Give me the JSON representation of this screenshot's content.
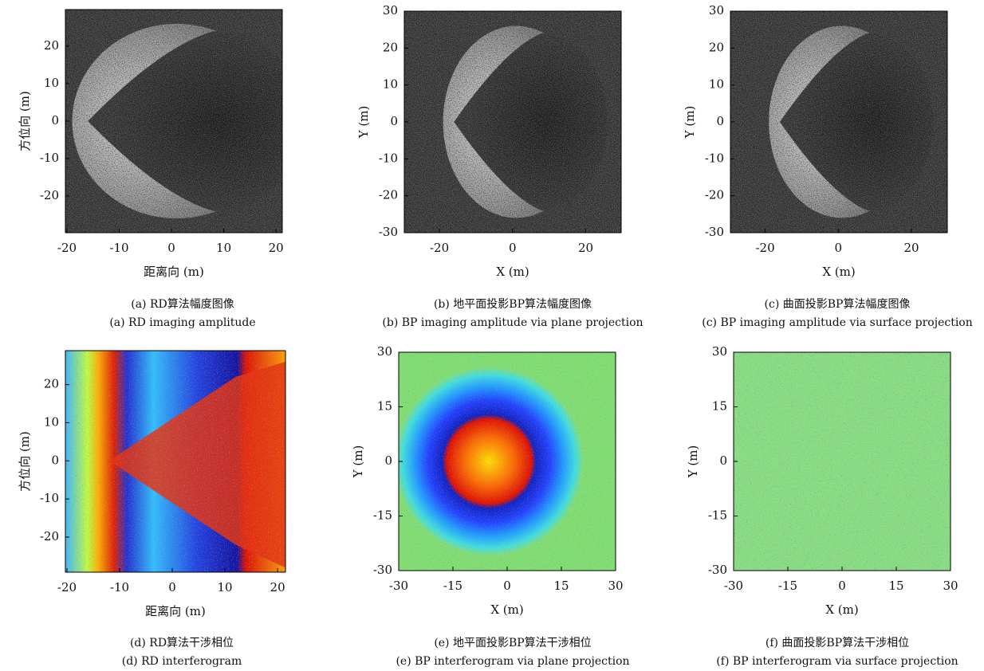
{
  "panels": [
    {
      "kind": "amplitude",
      "xlim": [
        -20.3,
        21.2
      ],
      "ylim": [
        -29.8,
        29.8
      ],
      "xticks": [
        -20,
        -10,
        0,
        10,
        20
      ],
      "yticks": [
        20,
        10,
        0,
        -10,
        -20
      ],
      "xlabel": "距离向 (m)",
      "ylabel": "方位向 (m)",
      "caption_cn": "(a) RD算法幅度图像",
      "caption_en": "(a) RD imaging amplitude"
    },
    {
      "kind": "amplitude",
      "xlim": [
        -29.6,
        29.7
      ],
      "ylim": [
        -30,
        30
      ],
      "xticks": [
        -20,
        0,
        20
      ],
      "yticks": [
        30,
        20,
        10,
        0,
        -10,
        -20,
        -30
      ],
      "xlabel": "X (m)",
      "ylabel": "Y (m)",
      "caption_cn": "(b) 地平面投影BP算法幅度图像",
      "caption_en": "(b) BP imaging amplitude via plane projection"
    },
    {
      "kind": "amplitude",
      "xlim": [
        -29.5,
        29.8
      ],
      "ylim": [
        -30,
        30
      ],
      "xticks": [
        -20,
        0,
        20
      ],
      "yticks": [
        30,
        20,
        10,
        0,
        -10,
        -20,
        -30
      ],
      "xlabel": "X (m)",
      "ylabel": "Y (m)",
      "caption_cn": "(c) 曲面投影BP算法幅度图像",
      "caption_en": "(c) BP imaging amplitude via surface projection"
    },
    {
      "kind": "rd-phase",
      "xlim": [
        -20.3,
        21.5
      ],
      "ylim": [
        -29.2,
        28.9
      ],
      "xticks": [
        -20,
        -10,
        0,
        10,
        20
      ],
      "yticks": [
        20,
        10,
        0,
        -10,
        -20
      ],
      "xlabel": "距离向 (m)",
      "ylabel": "方位向 (m)",
      "caption_cn": "(d) RD算法干涉相位",
      "caption_en": "(d) RD interferogram"
    },
    {
      "kind": "plane-phase",
      "xlim": [
        -30,
        30
      ],
      "ylim": [
        -30,
        30
      ],
      "xticks": [
        -30,
        -15,
        0,
        15,
        30
      ],
      "yticks": [
        30,
        15,
        0,
        -15,
        -30
      ],
      "xlabel": "X (m)",
      "ylabel": "Y (m)",
      "caption_cn": "(e) 地平面投影BP算法干涉相位",
      "caption_en": "(e) BP interferogram via plane projection"
    },
    {
      "kind": "surface-phase",
      "xlim": [
        -30,
        30
      ],
      "ylim": [
        -30,
        30
      ],
      "xticks": [
        -30,
        -15,
        0,
        15,
        30
      ],
      "yticks": [
        30,
        15,
        0,
        -15,
        -30
      ],
      "xlabel": "X (m)",
      "ylabel": "Y (m)",
      "caption_cn": "(f) 曲面投影BP算法干涉相位",
      "caption_en": "(f) BP interferogram via surface projection"
    }
  ]
}
